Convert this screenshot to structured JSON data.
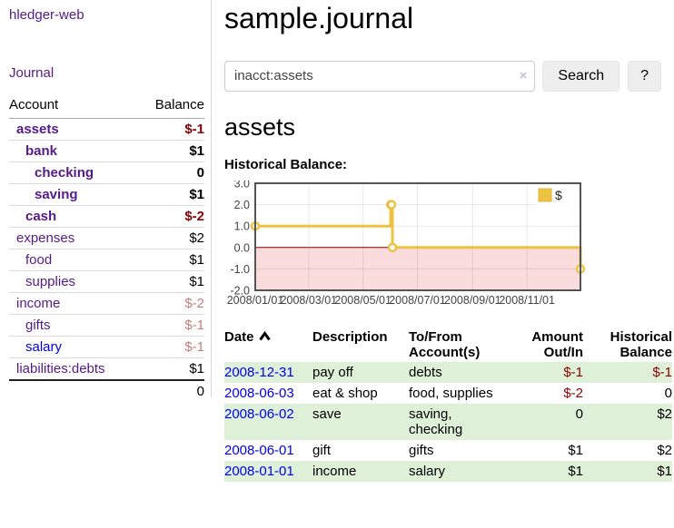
{
  "app": {
    "brand": "hledger-web",
    "nav_journal": "Journal"
  },
  "sidebar": {
    "accounts_header": {
      "account": "Account",
      "balance": "Balance"
    },
    "rows": [
      {
        "name": "assets",
        "indent": 1,
        "bold": true,
        "balance": "$-1",
        "balance_color": "negative"
      },
      {
        "name": "bank",
        "indent": 2,
        "bold": true,
        "balance": "$1",
        "balance_color": "normal"
      },
      {
        "name": "checking",
        "indent": 3,
        "bold": true,
        "balance": "0",
        "balance_color": "normal"
      },
      {
        "name": "saving",
        "indent": 3,
        "bold": true,
        "balance": "$1",
        "balance_color": "normal"
      },
      {
        "name": "cash",
        "indent": 2,
        "bold": true,
        "balance": "$-2",
        "balance_color": "negative"
      },
      {
        "name": "expenses",
        "indent": 1,
        "bold": false,
        "balance": "$2",
        "balance_color": "normal"
      },
      {
        "name": "food",
        "indent": 2,
        "bold": false,
        "balance": "$1",
        "balance_color": "normal"
      },
      {
        "name": "supplies",
        "indent": 2,
        "bold": false,
        "balance": "$1",
        "balance_color": "normal"
      },
      {
        "name": "income",
        "indent": 1,
        "bold": false,
        "balance": "$-2",
        "balance_color": "faded"
      },
      {
        "name": "gifts",
        "indent": 2,
        "bold": false,
        "balance": "$-1",
        "balance_color": "faded"
      },
      {
        "name": "salary",
        "indent": 2,
        "bold": false,
        "balance": "$-1",
        "balance_color": "faded",
        "link_color": "blue"
      },
      {
        "name": "liabilities:debts",
        "indent": 1,
        "bold": false,
        "balance": "$1",
        "balance_color": "normal"
      }
    ],
    "total": "0"
  },
  "header": {
    "title": "sample.journal"
  },
  "search": {
    "value": "inacct:assets",
    "clear_icon": "×",
    "button": "Search",
    "help_button": "?"
  },
  "account_page": {
    "heading": "assets",
    "chart_label": "Historical Balance:"
  },
  "chart_data": {
    "type": "line",
    "step": true,
    "title": "Historical Balance",
    "series": [
      {
        "name": "$",
        "color": "#edc240",
        "points": [
          [
            "2008-01-01",
            1
          ],
          [
            "2008-06-01",
            2
          ],
          [
            "2008-06-02",
            2
          ],
          [
            "2008-06-03",
            0
          ],
          [
            "2008-12-31",
            -1
          ]
        ]
      }
    ],
    "xticks": [
      "2008/01/01",
      "2008/03/01",
      "2008/05/01",
      "2008/07/01",
      "2008/09/01",
      "2008/11/01"
    ],
    "yticks": [
      "3.0",
      "2.0",
      "1.0",
      "0.0",
      "-1.0",
      "-2.0"
    ],
    "ylim": [
      -2,
      3
    ],
    "grid": true,
    "legend_position": "top-right",
    "negative_region_color": "#fadcdc",
    "zero_line_color": "#8b0000",
    "border_color": "#545454",
    "marker_fill": "#ffffff"
  },
  "register_table": {
    "columns": [
      "Date",
      "Description",
      "To/From Account(s)",
      "Amount Out/In",
      "Historical Balance"
    ],
    "rows": [
      {
        "date": "2008-12-31",
        "description": "pay off",
        "accounts": "debts",
        "amount": "$-1",
        "amount_neg": true,
        "balance": "$-1",
        "balance_neg": true
      },
      {
        "date": "2008-06-03",
        "description": "eat & shop",
        "accounts": "food, supplies",
        "amount": "$-2",
        "amount_neg": true,
        "balance": "0",
        "balance_neg": false
      },
      {
        "date": "2008-06-02",
        "description": "save",
        "accounts": "saving, checking",
        "amount": "0",
        "amount_neg": false,
        "balance": "$2",
        "balance_neg": false
      },
      {
        "date": "2008-06-01",
        "description": "gift",
        "accounts": "gifts",
        "amount": "$1",
        "amount_neg": false,
        "balance": "$2",
        "balance_neg": false
      },
      {
        "date": "2008-01-01",
        "description": "income",
        "accounts": "salary",
        "amount": "$1",
        "amount_neg": false,
        "balance": "$1",
        "balance_neg": false
      }
    ]
  },
  "colors": {
    "visited_link_purple": "#551a8b",
    "link_blue": "#0000ee",
    "negative_red": "#8b0000",
    "faded_negative": "#c4807f",
    "row_green": "#dff0d8",
    "chart_gold": "#edc240",
    "chart_negative_region": "#fadcdc",
    "button_gray": "#eeeeee"
  }
}
